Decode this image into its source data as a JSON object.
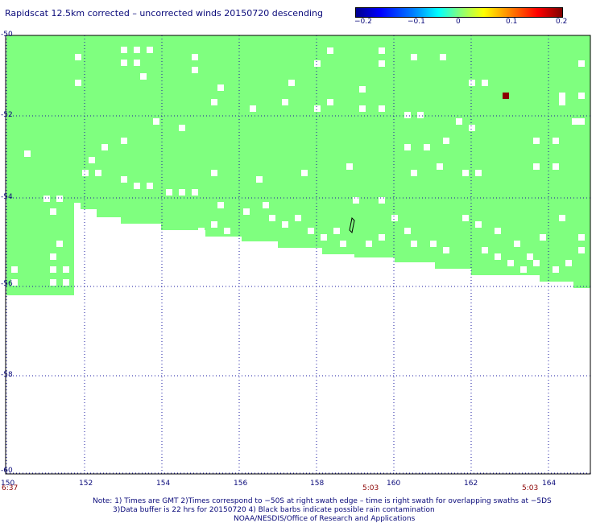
{
  "title": "Rapidscat 12.5km corrected – uncorrected winds 20150720 descending",
  "colorbar": {
    "labels": [
      "−0.2",
      "−0.1",
      "0",
      "0.1",
      "0.2"
    ],
    "colors": [
      "#00008f",
      "#0000ff",
      "#00ffff",
      "#80ff80",
      "#ffff00",
      "#ff0000",
      "#800000"
    ]
  },
  "axes": {
    "lat_labels": [
      "-50",
      "-52",
      "-54",
      "-56",
      "-58",
      "-60"
    ],
    "lon_labels": [
      "150",
      "152",
      "154",
      "156",
      "158",
      "160",
      "162",
      "164"
    ],
    "lat_range": [
      -60,
      -50
    ],
    "lon_range": [
      150,
      165
    ],
    "grid": "dotted"
  },
  "time_labels": [
    "6:37",
    "5:03",
    "5:03"
  ],
  "swath_color": "#7fff7f",
  "notes": {
    "line1": "Note: 1) Times are GMT 2)Times correspond to −50S at right swath edge – time is right swath for overlapping swaths at −5DS",
    "line2": "3)Data buffer is 22 hrs for 20150720 4) Black barbs indicate possible rain contamination",
    "line3": "NOAA/NESDIS/Office of Research and Applications"
  }
}
